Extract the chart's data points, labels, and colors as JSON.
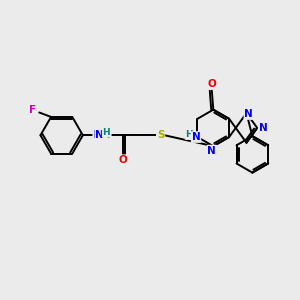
{
  "background_color": "#ebebeb",
  "bond_color": "#000000",
  "atom_colors": {
    "F": "#cc00cc",
    "N": "#0000ee",
    "O": "#ee0000",
    "S": "#aaaa00",
    "H": "#008080",
    "C": "#000000"
  },
  "figsize": [
    3.0,
    3.0
  ],
  "dpi": 100,
  "lw": 1.4
}
